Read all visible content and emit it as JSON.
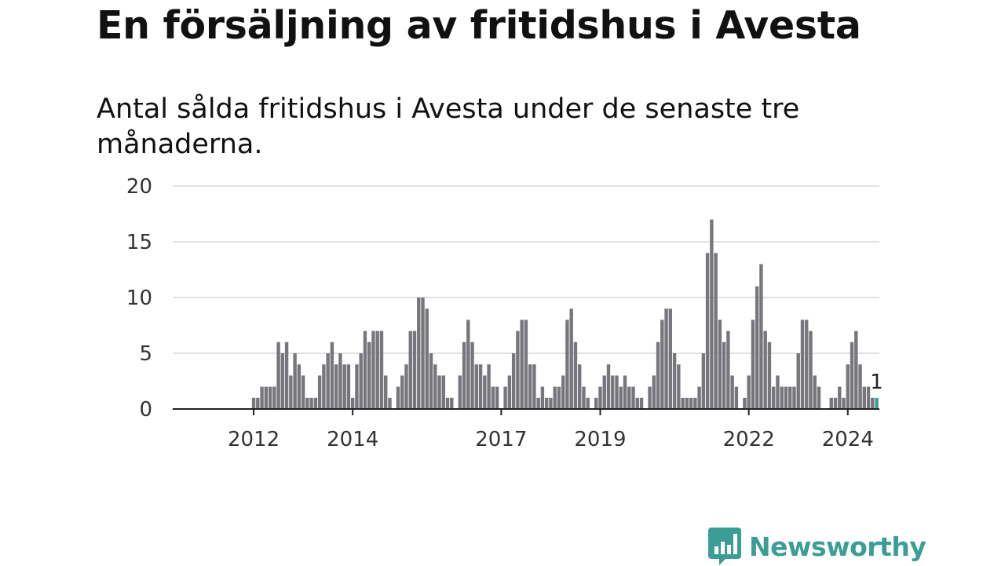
{
  "title": "En försäljning av fritidshus i Avesta",
  "subtitle": "Antal sålda fritidshus i Avesta under de senaste tre månaderna.",
  "brand": {
    "name": "Newsworthy",
    "color": "#3b9e96",
    "icon": "bar-chart-speech-bubble-icon"
  },
  "chart_data": {
    "type": "bar",
    "ylim": [
      0,
      20
    ],
    "yticks": [
      0,
      5,
      10,
      15,
      20
    ],
    "grid": true,
    "legend": "none",
    "x_start": "2011-01",
    "frequency": "monthly",
    "xtick_labels": [
      {
        "label": "2012",
        "x": "2012-01"
      },
      {
        "label": "2014",
        "x": "2014-01"
      },
      {
        "label": "2017",
        "x": "2017-01"
      },
      {
        "label": "2019",
        "x": "2019-01"
      },
      {
        "label": "2022",
        "x": "2022-01"
      },
      {
        "label": "2024",
        "x": "2024-01"
      }
    ],
    "values": [
      0,
      0,
      0,
      0,
      0,
      0,
      0,
      0,
      0,
      0,
      0,
      0,
      1,
      1,
      2,
      2,
      2,
      2,
      6,
      5,
      6,
      3,
      5,
      4,
      3,
      1,
      1,
      1,
      3,
      4,
      5,
      6,
      4,
      5,
      4,
      4,
      1,
      4,
      5,
      7,
      6,
      7,
      7,
      7,
      3,
      1,
      0,
      2,
      3,
      4,
      7,
      7,
      10,
      10,
      9,
      5,
      4,
      3,
      3,
      1,
      1,
      0,
      3,
      6,
      8,
      6,
      4,
      4,
      3,
      4,
      2,
      2,
      0,
      2,
      3,
      5,
      7,
      8,
      8,
      4,
      4,
      1,
      2,
      1,
      1,
      2,
      2,
      3,
      8,
      9,
      6,
      4,
      2,
      1,
      0,
      1,
      2,
      3,
      4,
      3,
      3,
      2,
      3,
      2,
      2,
      1,
      1,
      0,
      2,
      3,
      6,
      8,
      9,
      9,
      5,
      4,
      1,
      1,
      1,
      1,
      2,
      5,
      14,
      17,
      14,
      8,
      6,
      7,
      3,
      2,
      0,
      1,
      3,
      8,
      11,
      13,
      7,
      6,
      2,
      3,
      2,
      2,
      2,
      2,
      5,
      8,
      8,
      7,
      3,
      2,
      0,
      0,
      1,
      1,
      2,
      1,
      4,
      6,
      7,
      4,
      2,
      2,
      1,
      1
    ],
    "bar_color": "#76767c",
    "highlight_color": "#3b9e96",
    "highlight_last": true,
    "last_label": "1"
  }
}
